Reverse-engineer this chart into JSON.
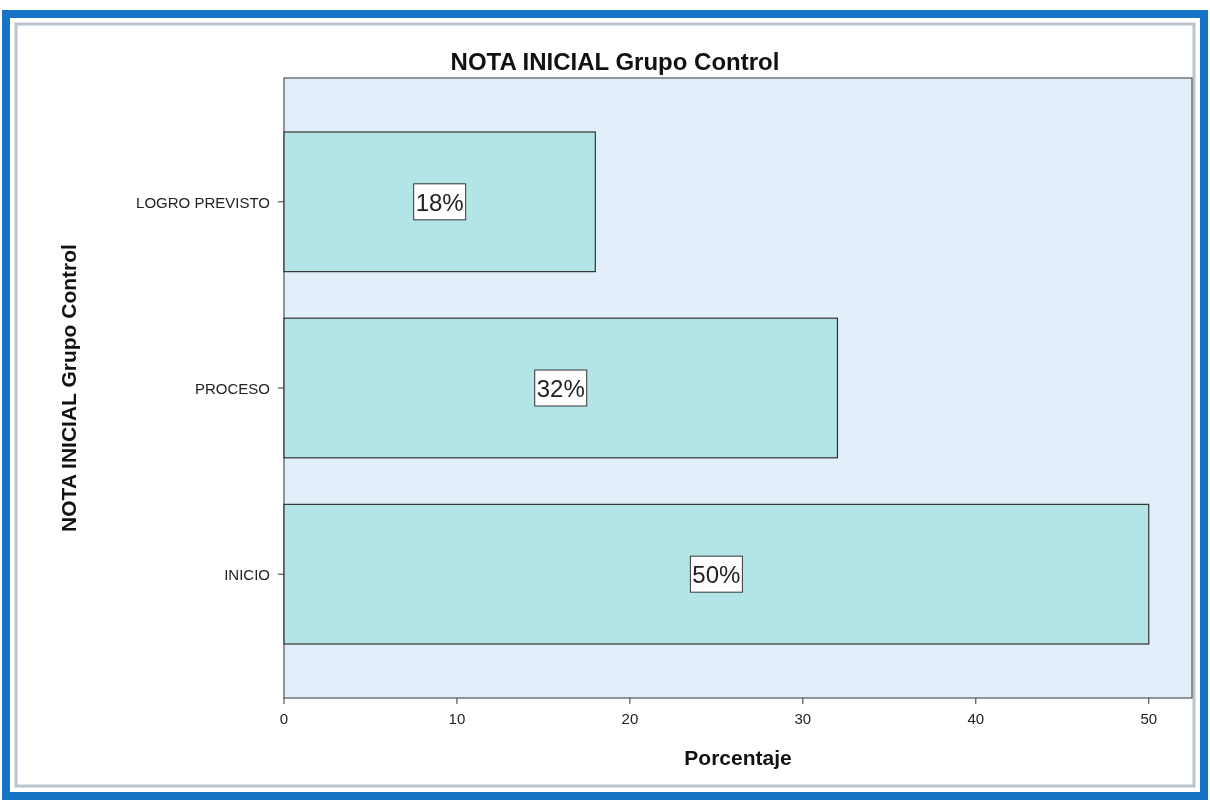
{
  "chart_data": {
    "type": "bar",
    "orientation": "horizontal",
    "title": "NOTA INICIAL Grupo Control",
    "xlabel": "Porcentaje",
    "ylabel": "NOTA INICIAL Grupo Control",
    "categories": [
      "LOGRO PREVISTO",
      "PROCESO",
      "INICIO"
    ],
    "values": [
      18,
      32,
      50
    ],
    "value_labels": [
      "18%",
      "32%",
      "50%"
    ],
    "color": "#b3e5e6",
    "xlim": [
      0,
      52.5
    ],
    "xticks": [
      0,
      10,
      20,
      30,
      40,
      50
    ],
    "grid": false
  }
}
